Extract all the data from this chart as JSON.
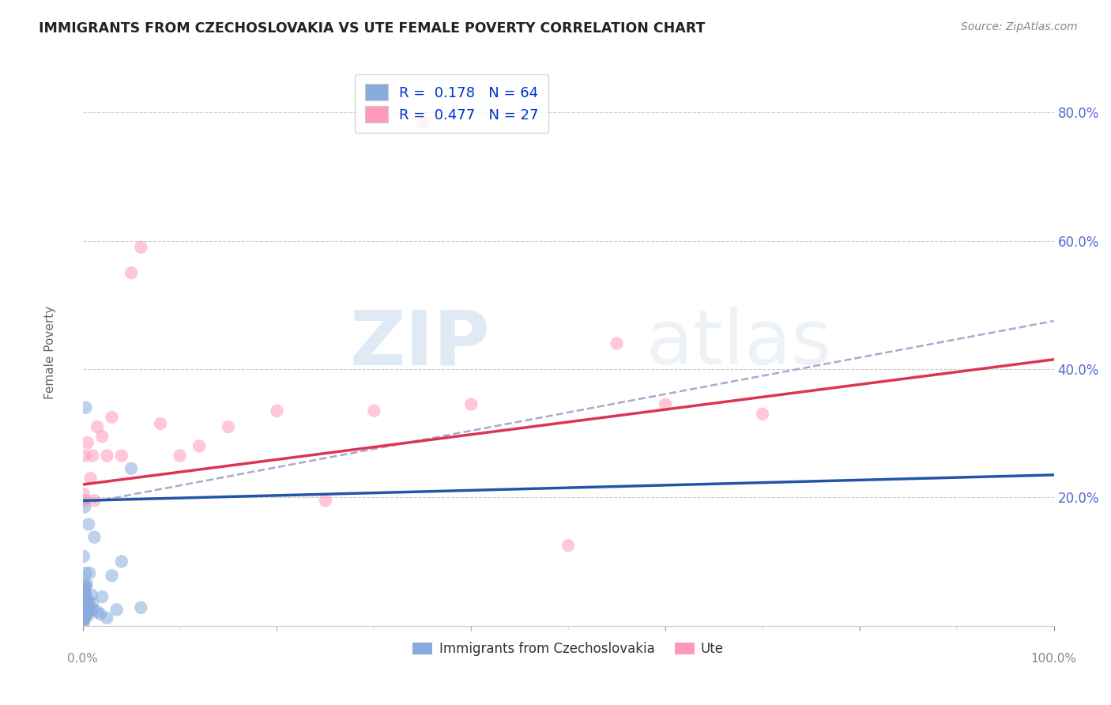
{
  "title": "IMMIGRANTS FROM CZECHOSLOVAKIA VS UTE FEMALE POVERTY CORRELATION CHART",
  "source": "Source: ZipAtlas.com",
  "ylabel": "Female Poverty",
  "watermark": "ZIPatlas",
  "legend_r1": "R =  0.178",
  "legend_n1": "N = 64",
  "legend_r2": "R =  0.477",
  "legend_n2": "N = 27",
  "blue_color": "#88AADD",
  "pink_color": "#FF99BB",
  "trend_blue": "#2255AA",
  "trend_pink": "#DD3355",
  "trend_dashed_color": "#AAAACC",
  "tick_color": "#5566CC",
  "xlim": [
    0.0,
    1.0
  ],
  "ylim": [
    0.0,
    0.88
  ],
  "blue_x": [
    0.001,
    0.001,
    0.001,
    0.001,
    0.001,
    0.001,
    0.001,
    0.001,
    0.001,
    0.001,
    0.001,
    0.001,
    0.001,
    0.001,
    0.001,
    0.001,
    0.001,
    0.001,
    0.001,
    0.001,
    0.002,
    0.002,
    0.002,
    0.002,
    0.002,
    0.002,
    0.002,
    0.002,
    0.002,
    0.002,
    0.003,
    0.003,
    0.003,
    0.003,
    0.003,
    0.003,
    0.004,
    0.004,
    0.004,
    0.004,
    0.005,
    0.005,
    0.006,
    0.006,
    0.007,
    0.008,
    0.009,
    0.01,
    0.01,
    0.012,
    0.015,
    0.018,
    0.02,
    0.025,
    0.03,
    0.035,
    0.04,
    0.05,
    0.06,
    0.006,
    0.003,
    0.002,
    0.001,
    0.001
  ],
  "blue_y": [
    0.038,
    0.025,
    0.045,
    0.032,
    0.018,
    0.055,
    0.012,
    0.028,
    0.042,
    0.008,
    0.035,
    0.048,
    0.022,
    0.015,
    0.038,
    0.025,
    0.018,
    0.03,
    0.055,
    0.01,
    0.062,
    0.035,
    0.048,
    0.025,
    0.018,
    0.04,
    0.028,
    0.055,
    0.015,
    0.035,
    0.082,
    0.028,
    0.062,
    0.048,
    0.022,
    0.035,
    0.065,
    0.018,
    0.038,
    0.025,
    0.025,
    0.015,
    0.022,
    0.038,
    0.082,
    0.028,
    0.048,
    0.035,
    0.025,
    0.138,
    0.022,
    0.018,
    0.045,
    0.012,
    0.078,
    0.025,
    0.1,
    0.245,
    0.028,
    0.158,
    0.34,
    0.185,
    0.108,
    0.005
  ],
  "pink_x": [
    0.001,
    0.002,
    0.003,
    0.005,
    0.008,
    0.01,
    0.012,
    0.015,
    0.02,
    0.025,
    0.03,
    0.04,
    0.05,
    0.06,
    0.08,
    0.1,
    0.12,
    0.15,
    0.2,
    0.25,
    0.3,
    0.35,
    0.4,
    0.5,
    0.55,
    0.6,
    0.7
  ],
  "pink_y": [
    0.205,
    0.265,
    0.195,
    0.285,
    0.23,
    0.265,
    0.195,
    0.31,
    0.295,
    0.265,
    0.325,
    0.265,
    0.55,
    0.59,
    0.315,
    0.265,
    0.28,
    0.31,
    0.335,
    0.195,
    0.335,
    0.785,
    0.345,
    0.125,
    0.44,
    0.345,
    0.33
  ],
  "blue_trend_x": [
    0.0,
    1.0
  ],
  "blue_trend_y": [
    0.195,
    0.235
  ],
  "pink_trend_x": [
    0.0,
    1.0
  ],
  "pink_trend_y": [
    0.22,
    0.415
  ],
  "dashed_trend_x": [
    0.0,
    1.0
  ],
  "dashed_trend_y": [
    0.19,
    0.475
  ]
}
